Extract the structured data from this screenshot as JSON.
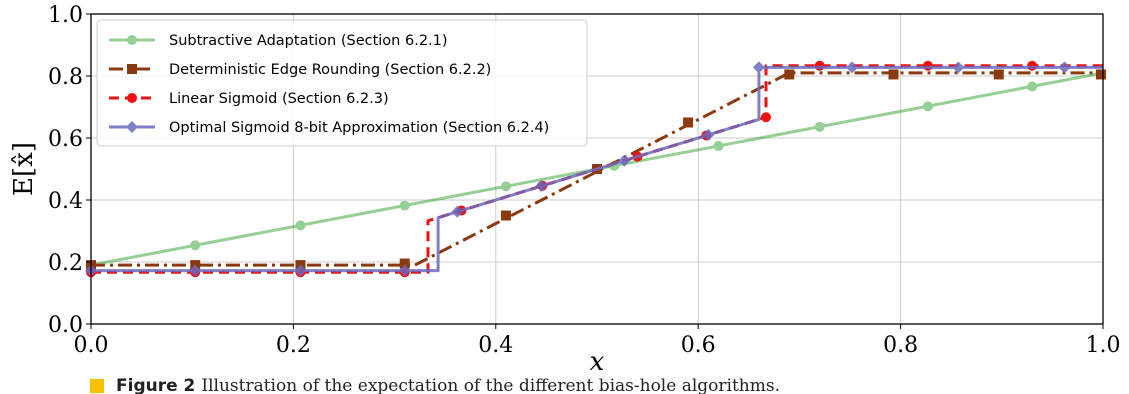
{
  "chart_data": {
    "type": "line",
    "xlabel": "x",
    "ylabel": "E[x̂]",
    "xlim": [
      0.0,
      1.0
    ],
    "ylim": [
      0.0,
      1.0
    ],
    "xticks": [
      "0.0",
      "0.2",
      "0.4",
      "0.6",
      "0.8",
      "1.0"
    ],
    "yticks": [
      "0.0",
      "0.2",
      "0.4",
      "0.6",
      "0.8",
      "1.0"
    ],
    "grid": true,
    "legend_position": "top-left",
    "series": [
      {
        "name": "Subtractive Adaptation (Section 6.2.1)",
        "color": "#2ca02c",
        "linestyle": "solid",
        "marker": "circle",
        "x": [
          0.0,
          1.0
        ],
        "y": [
          0.19,
          0.81
        ],
        "markers_x": [
          0.0,
          0.103,
          0.207,
          0.31,
          0.41,
          0.517,
          0.62,
          0.72,
          0.827,
          0.93
        ],
        "markers_y": [
          0.19,
          0.254,
          0.318,
          0.382,
          0.444,
          0.51,
          0.574,
          0.636,
          0.702,
          0.766
        ]
      },
      {
        "name": "Deterministic Edge Rounding (Section 6.2.2)",
        "color": "#8b3a0f",
        "linestyle": "dashdot",
        "marker": "square",
        "x": [
          0.0,
          0.32,
          0.69,
          1.0
        ],
        "y": [
          0.19,
          0.19,
          0.81,
          0.81
        ],
        "markers_x": [
          0.0,
          0.103,
          0.207,
          0.31,
          0.41,
          0.5,
          0.59,
          0.69,
          0.793,
          0.897,
          0.998
        ],
        "markers_y": [
          0.19,
          0.19,
          0.19,
          0.195,
          0.35,
          0.5,
          0.65,
          0.805,
          0.805,
          0.805,
          0.805
        ]
      },
      {
        "name": "Linear Sigmoid (Section 6.2.3)",
        "color": "#ee1111",
        "linestyle": "dashed",
        "marker": "circle",
        "x": [
          0.0,
          0.333,
          0.333,
          0.667,
          0.667,
          1.0
        ],
        "y": [
          0.167,
          0.167,
          0.333,
          0.667,
          0.833,
          0.833
        ],
        "markers_x": [
          0.0,
          0.103,
          0.207,
          0.31,
          0.366,
          0.446,
          0.54,
          0.608,
          0.667,
          0.72,
          0.827,
          0.93
        ],
        "markers_y": [
          0.167,
          0.167,
          0.167,
          0.167,
          0.366,
          0.446,
          0.54,
          0.608,
          0.667,
          0.833,
          0.833,
          0.833
        ]
      },
      {
        "name": "Optimal Sigmoid 8-bit Approximation (Section 6.2.4)",
        "color": "#6a6abf",
        "linestyle": "solid",
        "marker": "diamond",
        "x": [
          0.0,
          0.343,
          0.343,
          0.66,
          0.66,
          1.0
        ],
        "y": [
          0.172,
          0.172,
          0.343,
          0.66,
          0.828,
          0.828
        ],
        "markers_x": [
          0.0,
          0.103,
          0.207,
          0.31,
          0.362,
          0.445,
          0.527,
          0.61,
          0.66,
          0.752,
          0.857,
          0.962
        ],
        "markers_y": [
          0.172,
          0.172,
          0.172,
          0.172,
          0.362,
          0.445,
          0.527,
          0.61,
          0.828,
          0.828,
          0.828,
          0.828
        ]
      }
    ]
  },
  "caption": {
    "label": "Figure 2",
    "text": "Illustration of the expectation of the different bias-hole algorithms."
  }
}
